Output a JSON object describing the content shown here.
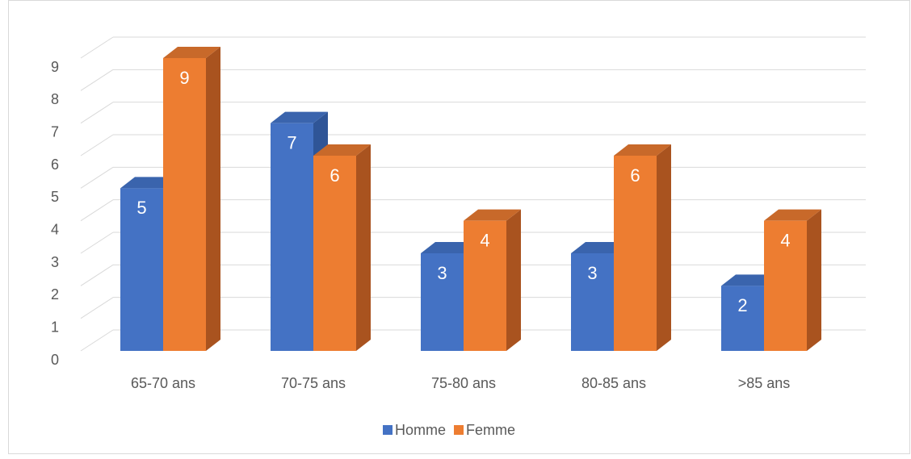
{
  "chart_data": {
    "type": "bar3d",
    "categories": [
      "65-70 ans",
      "70-75 ans",
      "75-80 ans",
      "80-85 ans",
      ">85 ans"
    ],
    "series": [
      {
        "name": "Homme",
        "color": "#4472c4",
        "side": "#2f5597",
        "top": "#3a64ad",
        "values": [
          5,
          7,
          3,
          3,
          2
        ]
      },
      {
        "name": "Femme",
        "color": "#ed7d31",
        "side": "#a9531f",
        "top": "#c8692a",
        "values": [
          9,
          6,
          4,
          6,
          4
        ]
      }
    ],
    "ylim": [
      0,
      9
    ],
    "yticks": [
      0,
      1,
      2,
      3,
      4,
      5,
      6,
      7,
      8,
      9
    ],
    "grid": true,
    "legend": "bottom"
  }
}
